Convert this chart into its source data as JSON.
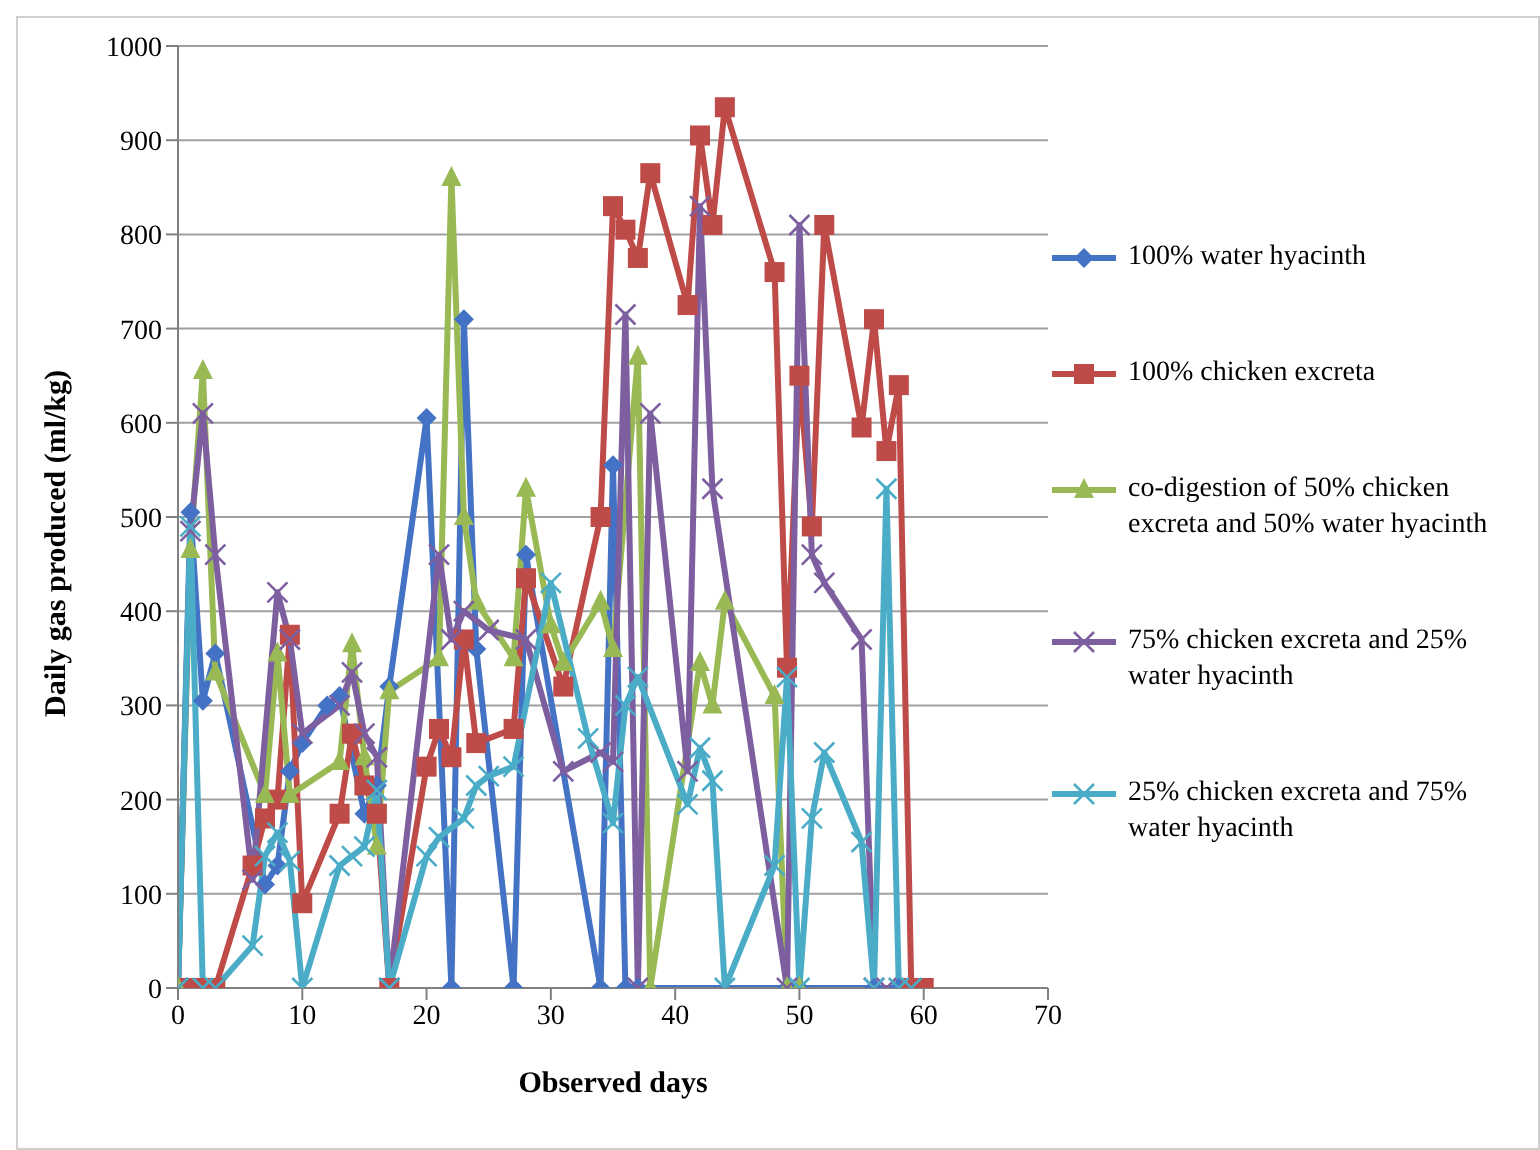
{
  "chart_data": {
    "type": "line",
    "xlabel": "Observed days",
    "ylabel": "Daily gas produced (ml/kg)",
    "xlim": [
      0,
      70
    ],
    "xticks": [
      0,
      10,
      20,
      30,
      40,
      50,
      60,
      70
    ],
    "ylim": [
      0,
      1000
    ],
    "yticks": [
      0,
      100,
      200,
      300,
      400,
      500,
      600,
      700,
      800,
      900,
      1000
    ],
    "grid": "y",
    "legend": "right",
    "series": [
      {
        "name": "100% water hyacinth",
        "color": "#4472c4",
        "marker": "diamond",
        "x": [
          0,
          1,
          2,
          3,
          7,
          8,
          9,
          10,
          12,
          13,
          15,
          16,
          17,
          20,
          22,
          23,
          24,
          27,
          28,
          34,
          35,
          36,
          37,
          49,
          50,
          56,
          58,
          60
        ],
        "values": [
          0,
          505,
          305,
          355,
          110,
          130,
          230,
          260,
          300,
          310,
          185,
          215,
          320,
          605,
          0,
          710,
          360,
          0,
          460,
          0,
          555,
          0,
          0,
          0,
          0,
          0,
          0,
          0
        ]
      },
      {
        "name": "100% chicken excreta",
        "color": "#be4b48",
        "marker": "square",
        "x": [
          0,
          1,
          2,
          3,
          6,
          7,
          8,
          9,
          10,
          13,
          14,
          15,
          16,
          17,
          20,
          21,
          22,
          23,
          24,
          27,
          28,
          31,
          34,
          35,
          36,
          37,
          38,
          41,
          42,
          43,
          44,
          48,
          49,
          50,
          51,
          52,
          55,
          56,
          57,
          58,
          59,
          60
        ],
        "values": [
          0,
          0,
          0,
          0,
          130,
          180,
          200,
          375,
          90,
          185,
          270,
          215,
          185,
          0,
          235,
          275,
          245,
          370,
          260,
          275,
          435,
          320,
          500,
          830,
          805,
          775,
          865,
          725,
          905,
          810,
          935,
          760,
          340,
          650,
          490,
          810,
          595,
          710,
          570,
          640,
          0,
          0
        ]
      },
      {
        "name": "co-digestion of 50% chicken excreta and 50% water hyacinth",
        "color": "#98b954",
        "marker": "triangle",
        "x": [
          0,
          1,
          2,
          3,
          7,
          8,
          9,
          13,
          14,
          15,
          16,
          17,
          21,
          22,
          23,
          24,
          27,
          28,
          30,
          31,
          34,
          35,
          37,
          38,
          42,
          43,
          44,
          48,
          49,
          50
        ],
        "values": [
          0,
          465,
          655,
          335,
          205,
          355,
          205,
          240,
          365,
          245,
          150,
          315,
          350,
          860,
          500,
          410,
          350,
          530,
          385,
          345,
          410,
          360,
          670,
          0,
          345,
          300,
          410,
          310,
          0,
          0
        ]
      },
      {
        "name": "75% chicken excreta and 25% water hyacinth",
        "color": "#7d5fa0",
        "marker": "cross",
        "x": [
          0,
          1,
          2,
          3,
          6,
          8,
          9,
          10,
          13,
          14,
          15,
          16,
          17,
          21,
          22,
          23,
          25,
          28,
          31,
          34,
          35,
          36,
          37,
          38,
          41,
          42,
          43,
          49,
          50,
          51,
          52,
          55,
          56,
          57
        ],
        "values": [
          0,
          485,
          610,
          460,
          115,
          420,
          370,
          270,
          300,
          335,
          270,
          245,
          0,
          460,
          370,
          400,
          380,
          370,
          230,
          250,
          240,
          715,
          0,
          610,
          230,
          830,
          530,
          0,
          810,
          460,
          430,
          370,
          0,
          0
        ]
      },
      {
        "name": "25% chicken excreta and 75% water hyacinth",
        "color": "#4aacc6",
        "marker": "cross",
        "x": [
          0,
          1,
          2,
          3,
          6,
          7,
          8,
          9,
          10,
          13,
          14,
          15,
          16,
          17,
          20,
          21,
          23,
          24,
          25,
          27,
          30,
          33,
          35,
          36,
          37,
          41,
          42,
          43,
          44,
          48,
          49,
          50,
          51,
          52,
          55,
          56,
          57,
          58,
          59
        ],
        "values": [
          0,
          490,
          0,
          0,
          45,
          140,
          165,
          135,
          0,
          130,
          140,
          150,
          210,
          0,
          140,
          160,
          180,
          215,
          225,
          235,
          430,
          265,
          175,
          300,
          330,
          195,
          255,
          220,
          0,
          130,
          330,
          0,
          180,
          250,
          155,
          0,
          530,
          0,
          0
        ]
      }
    ]
  }
}
